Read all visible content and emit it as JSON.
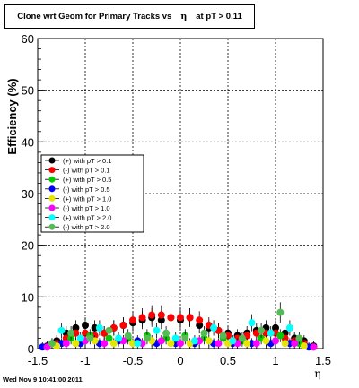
{
  "chart_data": {
    "type": "scatter",
    "title_main": "Clone wrt Geom for Primary Tracks vs",
    "title_eta": "η",
    "title_tail": "at pT > 0.11",
    "xlabel": "η",
    "ylabel": "Efficiency (%)",
    "xlim": [
      -1.5,
      1.5
    ],
    "ylim": [
      0,
      60
    ],
    "xticks": [
      "-1.5",
      "-1",
      "-0.5",
      "0",
      "0.5",
      "1",
      "1.5"
    ],
    "yticks": [
      "0",
      "10",
      "20",
      "30",
      "40",
      "50",
      "60"
    ],
    "grid": true,
    "legend_position": "left-middle",
    "series": [
      {
        "name": "(+) with pT > 0.1",
        "color": "#000000",
        "x": [
          -1.4,
          -1.3,
          -1.2,
          -1.1,
          -1.0,
          -0.9,
          -0.8,
          -0.7,
          -0.6,
          -0.5,
          -0.4,
          -0.3,
          -0.2,
          -0.1,
          0.0,
          0.1,
          0.2,
          0.3,
          0.4,
          0.5,
          0.6,
          0.7,
          0.8,
          0.9,
          1.0,
          1.1,
          1.2,
          1.3,
          1.4
        ],
        "y": [
          0.5,
          1.5,
          3,
          4,
          4.5,
          4,
          3,
          4,
          4.5,
          5,
          5.5,
          6,
          5.5,
          6,
          5.5,
          6,
          4.5,
          4,
          3.5,
          3,
          2.5,
          3,
          3.5,
          4,
          4,
          3,
          2,
          1.5,
          0.5
        ]
      },
      {
        "name": "(-) with pT > 0.1",
        "color": "#ff0000",
        "x": [
          -1.4,
          -1.3,
          -1.2,
          -1.1,
          -1.0,
          -0.9,
          -0.8,
          -0.7,
          -0.6,
          -0.5,
          -0.4,
          -0.3,
          -0.2,
          -0.1,
          0.0,
          0.1,
          0.2,
          0.3,
          0.4,
          0.5,
          0.6,
          0.7,
          0.8,
          0.9,
          1.0,
          1.1,
          1.2,
          1.3,
          1.4
        ],
        "y": [
          0.3,
          1,
          2,
          3,
          3,
          2.5,
          3,
          4,
          4.5,
          5.5,
          6,
          6.5,
          6.5,
          6,
          6,
          6,
          5.5,
          4.5,
          3.5,
          2.5,
          2,
          2.5,
          3,
          3,
          3,
          2,
          1.5,
          1,
          0.3
        ]
      },
      {
        "name": "(+) with pT > 0.5",
        "color": "#00cc00",
        "x": [
          -1.35,
          -1.15,
          -0.95,
          -0.75,
          -0.55,
          -0.35,
          -0.15,
          0.05,
          0.25,
          0.45,
          0.65,
          0.85,
          1.05,
          1.25
        ],
        "y": [
          1,
          2,
          2.5,
          2,
          2,
          2.5,
          2,
          2.5,
          2,
          2,
          1.5,
          2,
          2.5,
          1
        ]
      },
      {
        "name": "(-) with pT > 0.5",
        "color": "#0000ff",
        "x": [
          -1.45,
          -1.25,
          -1.05,
          -0.85,
          -0.65,
          -0.45,
          -0.25,
          -0.05,
          0.15,
          0.35,
          0.55,
          0.75,
          0.95,
          1.15,
          1.35
        ],
        "y": [
          0.3,
          1,
          1,
          1,
          1.5,
          1.5,
          1,
          1,
          1,
          1,
          1,
          1,
          1,
          1,
          0.3
        ]
      },
      {
        "name": "(+) with pT > 1.0",
        "color": "#e6e600",
        "x": [
          -1.3,
          -1.1,
          -0.9,
          -0.7,
          -0.5,
          -0.3,
          -0.1,
          0.1,
          0.3,
          0.5,
          0.7,
          0.9,
          1.1,
          1.3
        ],
        "y": [
          0.5,
          1,
          1.5,
          1,
          1,
          1.5,
          1,
          1,
          1.5,
          1,
          1,
          1.5,
          1,
          0.5
        ]
      },
      {
        "name": "(-) with pT > 1.0",
        "color": "#ff00ff",
        "x": [
          -1.4,
          -1.2,
          -1.0,
          -0.8,
          -0.6,
          -0.4,
          -0.2,
          0.0,
          0.2,
          0.4,
          0.6,
          0.8,
          1.0,
          1.2,
          1.4
        ],
        "y": [
          0.3,
          1,
          1.5,
          1,
          1.5,
          1,
          1.5,
          1,
          1.5,
          1,
          1,
          1,
          1.5,
          1,
          0.3
        ]
      },
      {
        "name": "(+) with pT > 2.0",
        "color": "#00ffff",
        "x": [
          -1.25,
          -1.05,
          -0.85,
          -0.65,
          -0.45,
          -0.25,
          -0.05,
          0.15,
          0.35,
          0.55,
          0.75,
          0.95,
          1.15
        ],
        "y": [
          3.5,
          2,
          4,
          2,
          1,
          3.5,
          2,
          1.5,
          4,
          1.5,
          5,
          3,
          4
        ]
      },
      {
        "name": "(-) with pT > 2.0",
        "color": "#55bb55",
        "x": [
          -1.35,
          -1.15,
          -0.95,
          -0.75,
          -0.55,
          -0.35,
          -0.15,
          0.05,
          0.25,
          0.45,
          0.65,
          0.85,
          1.05,
          1.25
        ],
        "y": [
          1,
          3,
          2,
          3.5,
          2.5,
          2,
          3,
          2,
          3,
          2.5,
          2,
          3.5,
          7,
          2
        ]
      }
    ]
  },
  "footer_timestamp": "Wed Nov  9 10:41:00 2011"
}
